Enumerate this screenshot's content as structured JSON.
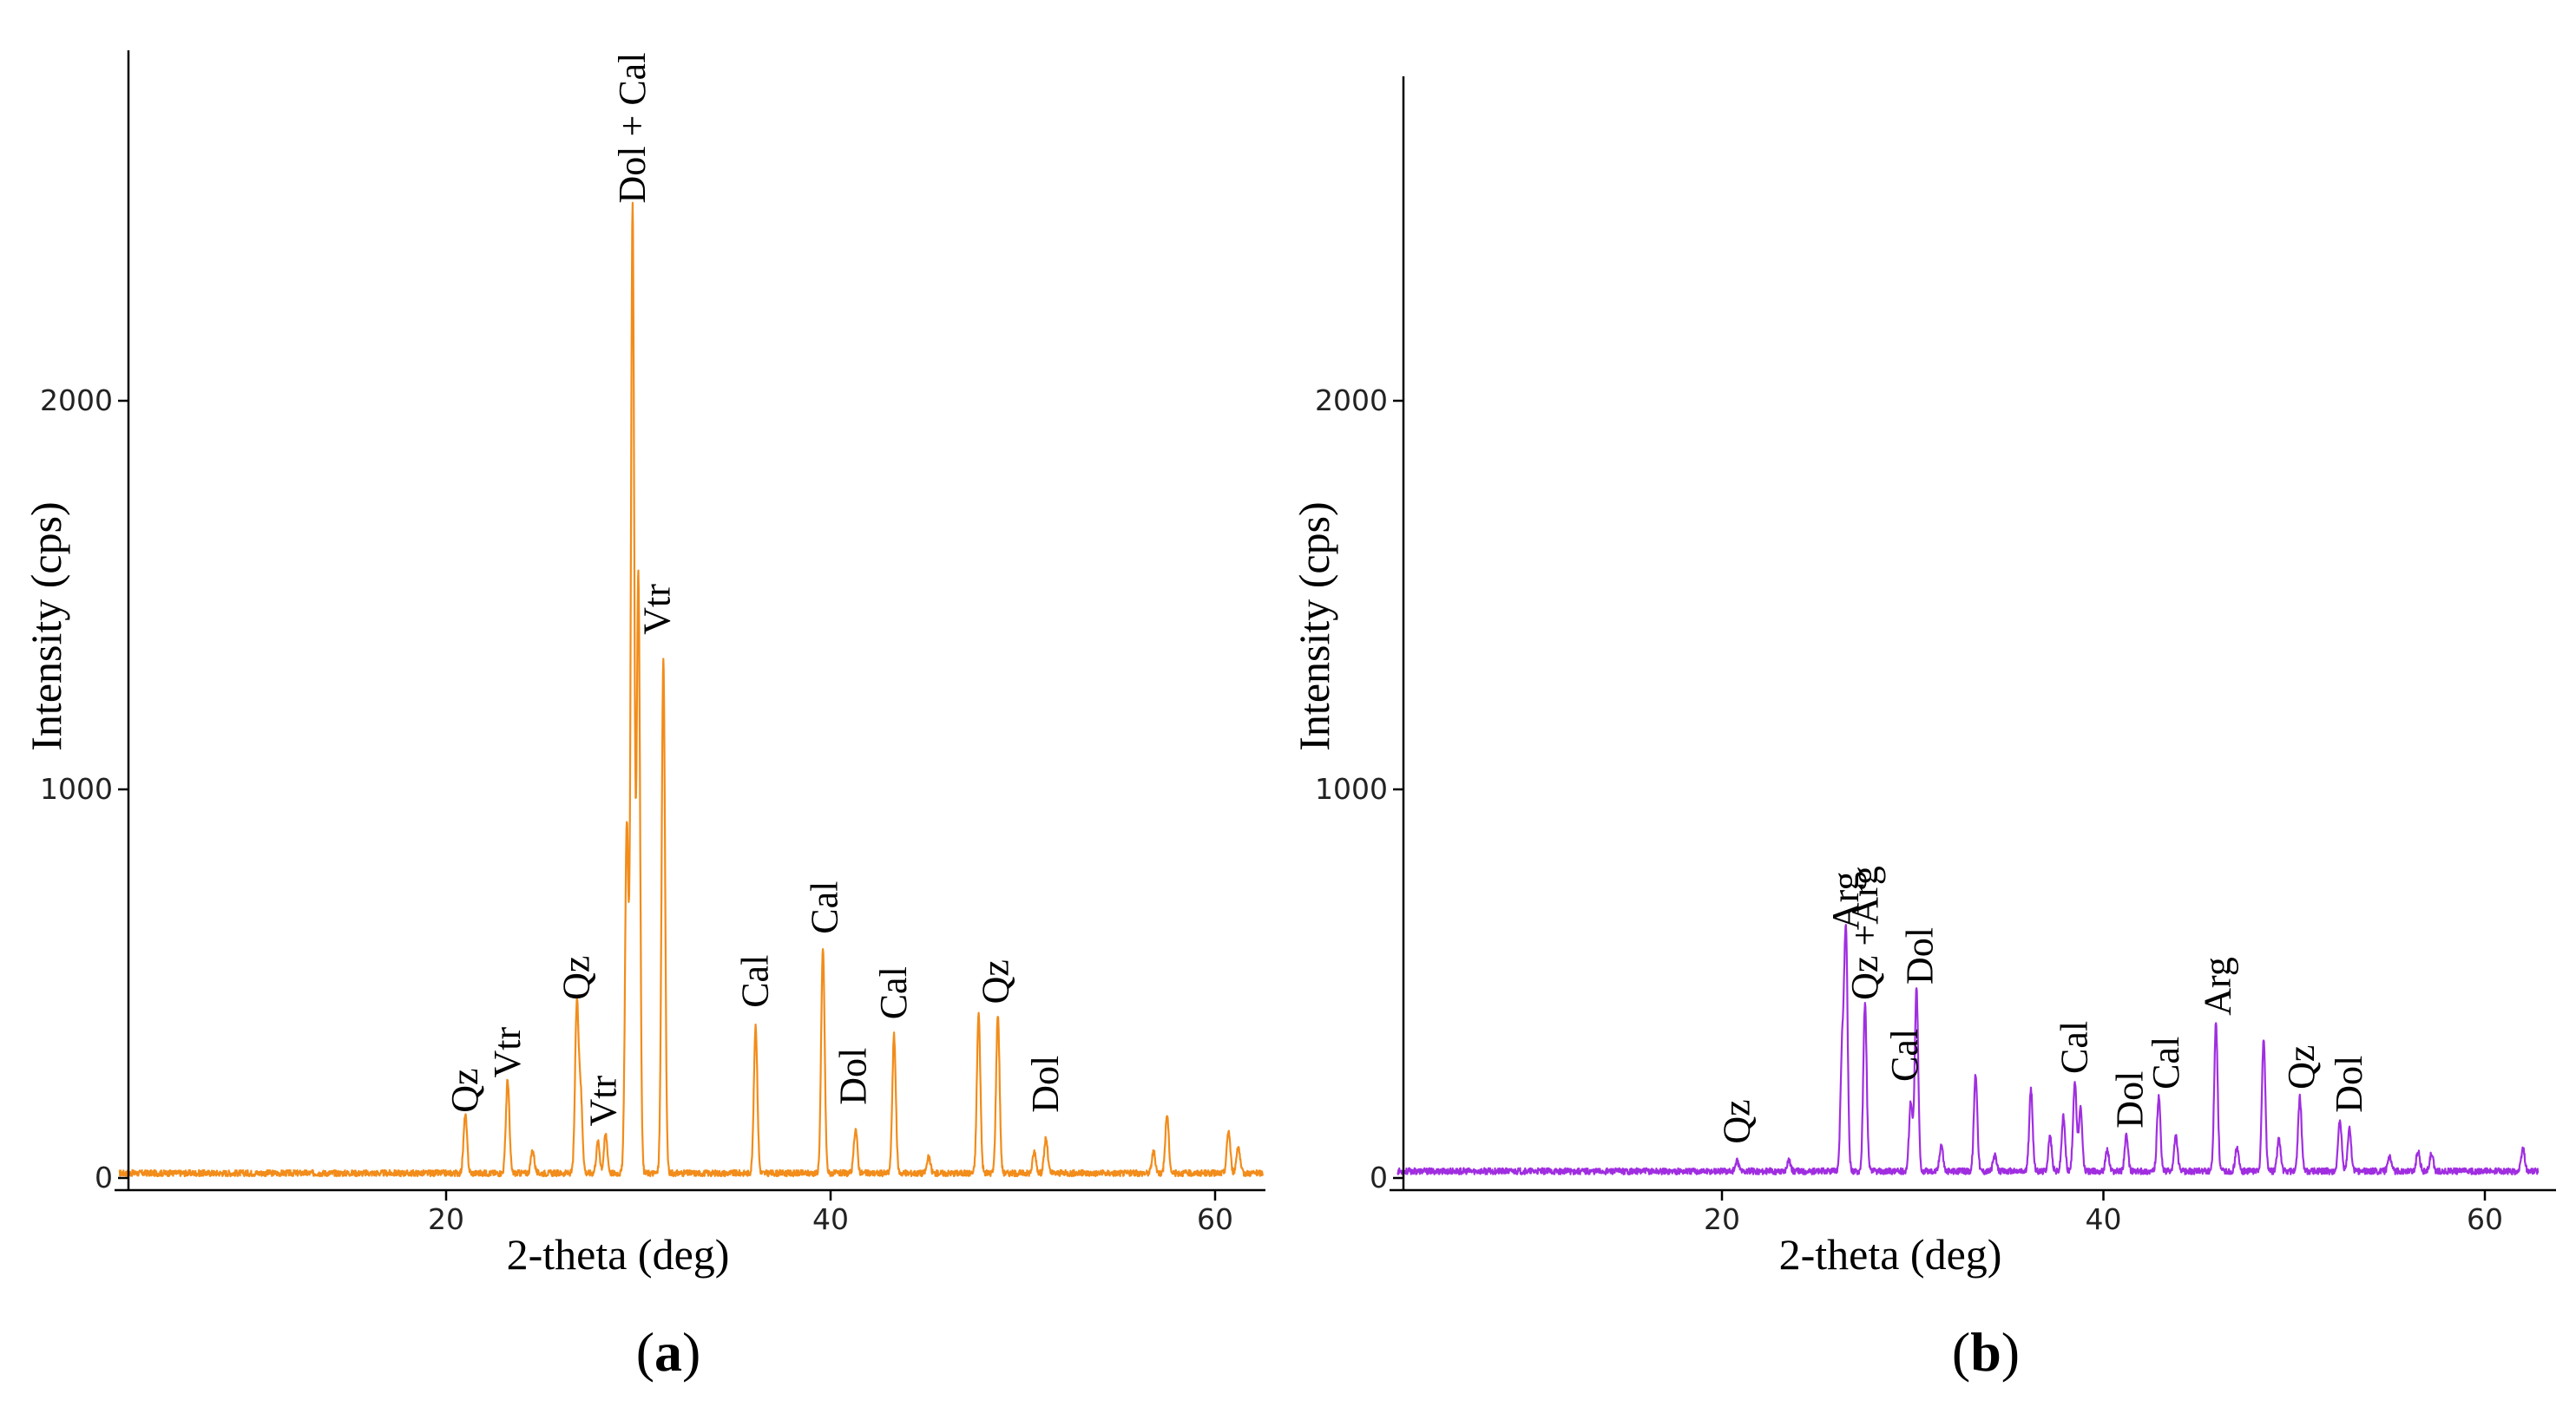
{
  "colors": {
    "panel_a": "#f28c1a",
    "panel_b": "#a02ee0"
  },
  "chart_data": [
    {
      "type": "line",
      "panel_letter": "a",
      "xlabel": "2-theta (deg)",
      "ylabel": "Intensity (cps)",
      "xlim": [
        3,
        62.5
      ],
      "ylim": [
        0,
        2800
      ],
      "x_ticks": [
        20,
        40,
        60
      ],
      "y_ticks": [
        0,
        1000,
        2000
      ],
      "baseline": 10,
      "noise": 16,
      "peaks": [
        {
          "x": 21.0,
          "y": 150
        },
        {
          "x": 23.2,
          "y": 240
        },
        {
          "x": 24.5,
          "y": 60
        },
        {
          "x": 26.8,
          "y": 430
        },
        {
          "x": 27.0,
          "y": 200
        },
        {
          "x": 27.9,
          "y": 80
        },
        {
          "x": 28.3,
          "y": 100
        },
        {
          "x": 29.4,
          "y": 900
        },
        {
          "x": 29.7,
          "y": 2480
        },
        {
          "x": 30.0,
          "y": 1540
        },
        {
          "x": 31.3,
          "y": 1320
        },
        {
          "x": 36.1,
          "y": 380
        },
        {
          "x": 39.6,
          "y": 580
        },
        {
          "x": 41.3,
          "y": 115
        },
        {
          "x": 43.3,
          "y": 355
        },
        {
          "x": 45.1,
          "y": 40
        },
        {
          "x": 47.7,
          "y": 410
        },
        {
          "x": 48.7,
          "y": 410
        },
        {
          "x": 50.6,
          "y": 55
        },
        {
          "x": 51.2,
          "y": 90
        },
        {
          "x": 56.8,
          "y": 55
        },
        {
          "x": 57.5,
          "y": 150
        },
        {
          "x": 60.7,
          "y": 110
        },
        {
          "x": 61.2,
          "y": 70
        }
      ],
      "annotations": [
        {
          "text": "Qz",
          "x": 21.0,
          "y": 150
        },
        {
          "text": "Vtr",
          "x": 23.2,
          "y": 240
        },
        {
          "text": "Qz",
          "x": 26.8,
          "y": 440
        },
        {
          "text": "Vtr",
          "x": 28.2,
          "y": 115
        },
        {
          "text": "Dol + Cal",
          "x": 29.7,
          "y": 2490
        },
        {
          "text": "Vtr",
          "x": 31.0,
          "y": 1380
        },
        {
          "text": "Cal",
          "x": 36.1,
          "y": 420
        },
        {
          "text": "Cal",
          "x": 39.7,
          "y": 610
        },
        {
          "text": "Dol",
          "x": 41.2,
          "y": 170
        },
        {
          "text": "Cal",
          "x": 43.3,
          "y": 390
        },
        {
          "text": "Qz",
          "x": 48.6,
          "y": 430
        },
        {
          "text": "Dol",
          "x": 51.2,
          "y": 150
        }
      ]
    },
    {
      "type": "line",
      "panel_letter": "b",
      "xlabel": "2-theta (deg)",
      "ylabel": "Intensity (cps)",
      "xlim": [
        3,
        62.8
      ],
      "ylim": [
        0,
        2750
      ],
      "x_ticks": [
        20,
        40,
        60
      ],
      "y_ticks": [
        0,
        1000,
        2000
      ],
      "baseline": 15,
      "noise": 16,
      "peaks": [
        {
          "x": 20.8,
          "y": 25
        },
        {
          "x": 23.5,
          "y": 30
        },
        {
          "x": 26.5,
          "y": 610
        },
        {
          "x": 26.3,
          "y": 300
        },
        {
          "x": 27.5,
          "y": 430
        },
        {
          "x": 29.9,
          "y": 180
        },
        {
          "x": 30.2,
          "y": 470
        },
        {
          "x": 31.5,
          "y": 70
        },
        {
          "x": 33.3,
          "y": 250
        },
        {
          "x": 34.3,
          "y": 40
        },
        {
          "x": 36.2,
          "y": 210
        },
        {
          "x": 37.2,
          "y": 90
        },
        {
          "x": 37.9,
          "y": 140
        },
        {
          "x": 38.5,
          "y": 230
        },
        {
          "x": 38.8,
          "y": 160
        },
        {
          "x": 40.2,
          "y": 55
        },
        {
          "x": 41.2,
          "y": 90
        },
        {
          "x": 42.9,
          "y": 190
        },
        {
          "x": 43.8,
          "y": 90
        },
        {
          "x": 45.9,
          "y": 380
        },
        {
          "x": 47.0,
          "y": 60
        },
        {
          "x": 48.4,
          "y": 340
        },
        {
          "x": 49.2,
          "y": 85
        },
        {
          "x": 50.3,
          "y": 190
        },
        {
          "x": 52.4,
          "y": 130
        },
        {
          "x": 52.9,
          "y": 110
        },
        {
          "x": 55.0,
          "y": 35
        },
        {
          "x": 56.5,
          "y": 55
        },
        {
          "x": 57.2,
          "y": 45
        },
        {
          "x": 62.0,
          "y": 60
        }
      ],
      "annotations": [
        {
          "text": "Qz",
          "x": 20.8,
          "y": 70
        },
        {
          "text": "Arg",
          "x": 26.5,
          "y": 620
        },
        {
          "text": "Qz +Arg",
          "x": 27.5,
          "y": 440
        },
        {
          "text": "Cal",
          "x": 29.6,
          "y": 230
        },
        {
          "text": "Dol",
          "x": 30.4,
          "y": 480
        },
        {
          "text": "Cal",
          "x": 38.5,
          "y": 250
        },
        {
          "text": "Dol",
          "x": 41.4,
          "y": 110
        },
        {
          "text": "Cal",
          "x": 43.3,
          "y": 210
        },
        {
          "text": "Arg",
          "x": 46.0,
          "y": 400
        },
        {
          "text": "Qz",
          "x": 50.4,
          "y": 210
        },
        {
          "text": "Dol",
          "x": 52.9,
          "y": 150
        }
      ]
    }
  ]
}
